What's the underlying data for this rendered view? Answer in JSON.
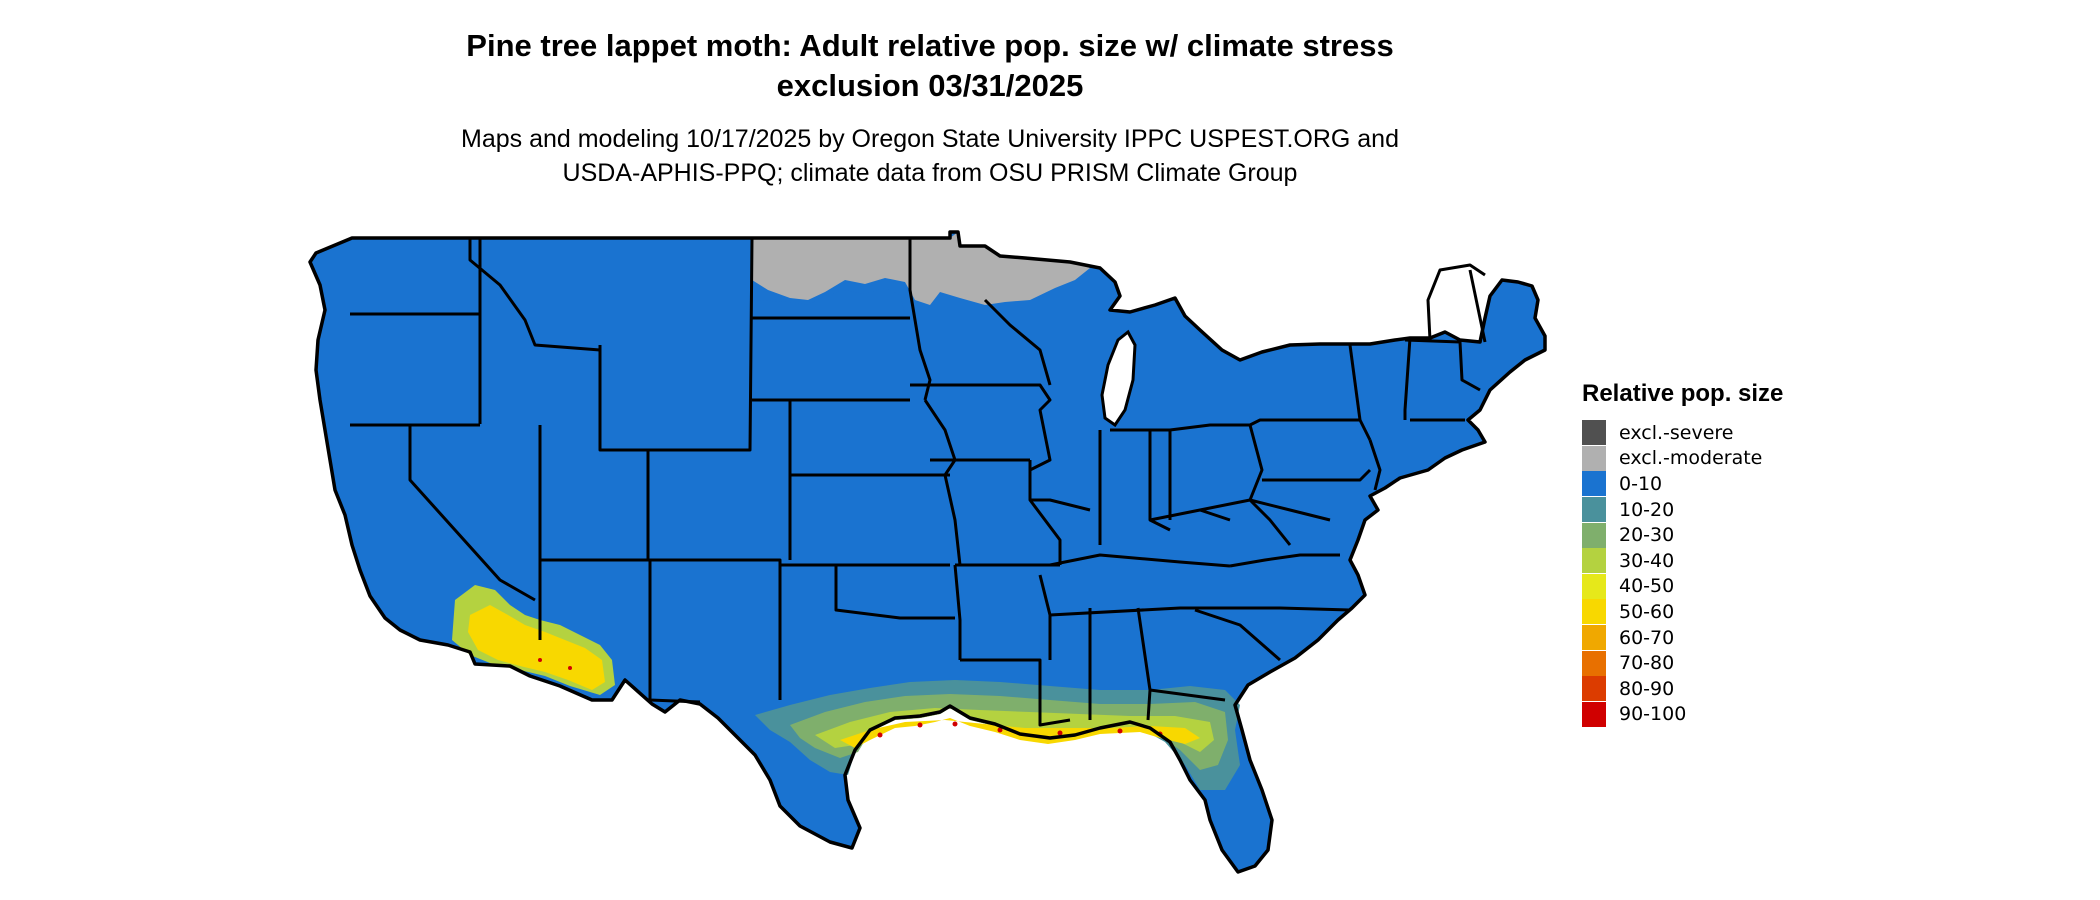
{
  "title": {
    "line1": "Pine tree lappet moth: Adult relative pop. size w/ climate stress",
    "line2": "exclusion 03/31/2025"
  },
  "subtitle": {
    "line1": "Maps and modeling 10/17/2025 by Oregon State University IPPC USPEST.ORG and",
    "line2": "USDA-APHIS-PPQ; climate data from OSU PRISM Climate Group"
  },
  "legend": {
    "title": "Relative pop. size",
    "items": [
      {
        "label": "excl.-severe",
        "color": "#505050"
      },
      {
        "label": "excl.-moderate",
        "color": "#b0b0b0"
      },
      {
        "label": "0-10",
        "color": "#1a73d0"
      },
      {
        "label": "10-20",
        "color": "#4a919c"
      },
      {
        "label": "20-30",
        "color": "#7faf6c"
      },
      {
        "label": "30-40",
        "color": "#b4d240"
      },
      {
        "label": "40-50",
        "color": "#e6e81a"
      },
      {
        "label": "50-60",
        "color": "#f8d800"
      },
      {
        "label": "60-70",
        "color": "#f0a800"
      },
      {
        "label": "70-80",
        "color": "#e87000"
      },
      {
        "label": "80-90",
        "color": "#dc3c00"
      },
      {
        "label": "90-100",
        "color": "#d00000"
      }
    ]
  },
  "map_colors": {
    "base": "#1a73d0",
    "excluded": "#b0b0b0",
    "band_10_20": "#4a919c",
    "band_20_30": "#7faf6c",
    "band_30_40": "#b4d240",
    "band_50_60": "#f8d800",
    "band_high": "#d00000",
    "border": "#000000"
  }
}
